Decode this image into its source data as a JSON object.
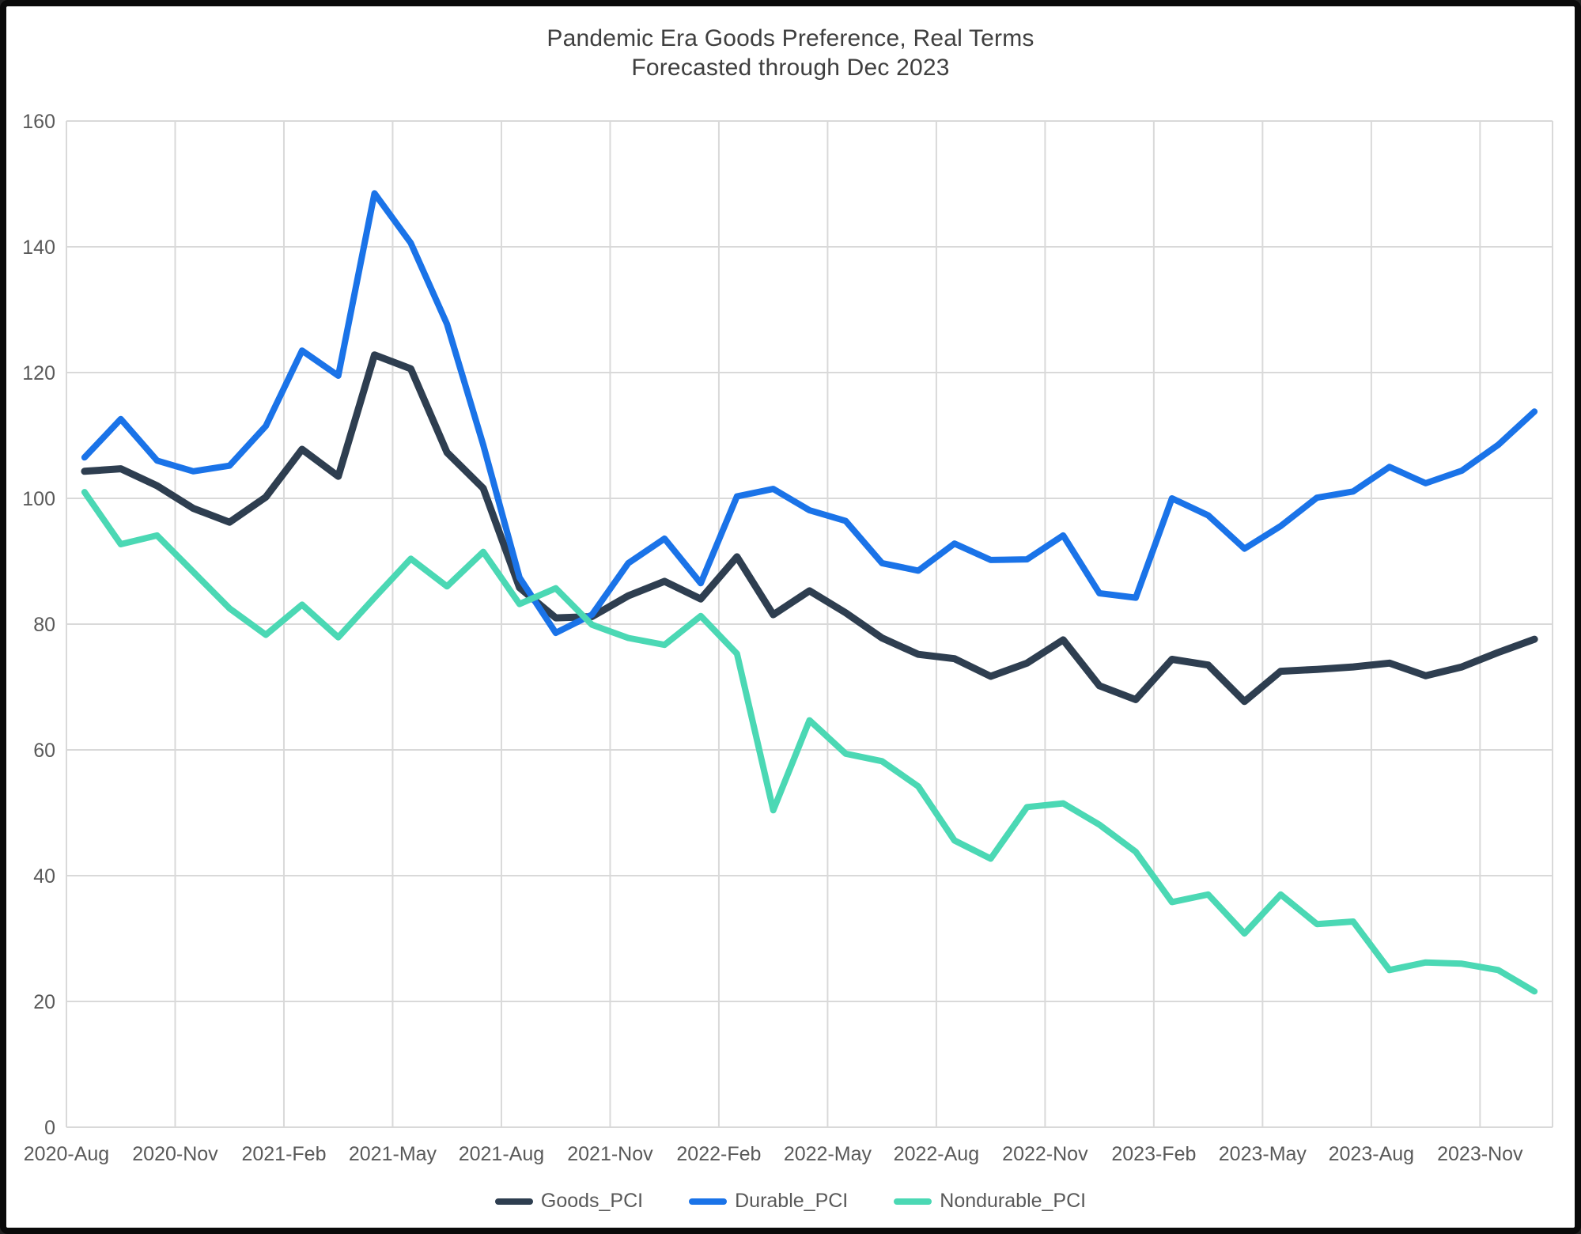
{
  "figure": {
    "title_line1": "Pandemic Era Goods Preference, Real Terms",
    "title_line2": "Forecasted through Dec 2023"
  },
  "chart_data": {
    "type": "line",
    "title": "Pandemic Era Goods Preference, Real Terms",
    "subtitle": "Forecasted through Dec 2023",
    "xlabel": "",
    "ylabel": "",
    "ylim": [
      0,
      160
    ],
    "y_ticks": [
      0,
      20,
      40,
      60,
      80,
      100,
      120,
      140,
      160
    ],
    "grid": true,
    "legend_position": "bottom",
    "x": [
      "2020-Aug",
      "2020-Sep",
      "2020-Oct",
      "2020-Nov",
      "2020-Dec",
      "2021-Jan",
      "2021-Feb",
      "2021-Mar",
      "2021-Apr",
      "2021-May",
      "2021-Jun",
      "2021-Jul",
      "2021-Aug",
      "2021-Sep",
      "2021-Oct",
      "2021-Nov",
      "2021-Dec",
      "2022-Jan",
      "2022-Feb",
      "2022-Mar",
      "2022-Apr",
      "2022-May",
      "2022-Jun",
      "2022-Jul",
      "2022-Aug",
      "2022-Sep",
      "2022-Oct",
      "2022-Nov",
      "2022-Dec",
      "2023-Jan",
      "2023-Feb",
      "2023-Mar",
      "2023-Apr",
      "2023-May",
      "2023-Jun",
      "2023-Jul",
      "2023-Aug",
      "2023-Sep",
      "2023-Oct",
      "2023-Nov",
      "2023-Dec"
    ],
    "x_tick_labels": [
      "2020-Aug",
      "2020-Nov",
      "2021-Feb",
      "2021-May",
      "2021-Aug",
      "2021-Nov",
      "2022-Feb",
      "2022-May",
      "2022-Aug",
      "2022-Nov",
      "2023-Feb",
      "2023-May",
      "2023-Aug",
      "2023-Nov"
    ],
    "x_tick_every": 3,
    "series": [
      {
        "name": "Goods_PCI",
        "color": "#2e3e50",
        "stroke_width": 9,
        "values": [
          104.3,
          104.7,
          102.0,
          98.4,
          96.2,
          100.2,
          107.8,
          103.5,
          122.8,
          120.6,
          107.3,
          101.6,
          85.8,
          81.0,
          81.2,
          84.5,
          86.8,
          84.0,
          90.7,
          81.5,
          85.3,
          81.8,
          77.8,
          75.2,
          74.5,
          71.7,
          73.8,
          77.5,
          70.2,
          68.0,
          74.4,
          73.5,
          67.7,
          72.5,
          72.8,
          73.2,
          73.8,
          71.8,
          73.2,
          75.5,
          77.6
        ]
      },
      {
        "name": "Durable_PCI",
        "color": "#1a73e8",
        "stroke_width": 8,
        "values": [
          106.5,
          112.6,
          106.0,
          104.3,
          105.2,
          111.5,
          123.5,
          119.5,
          148.5,
          140.6,
          127.7,
          108.5,
          87.4,
          78.6,
          81.5,
          89.7,
          93.6,
          86.5,
          100.3,
          101.5,
          98.1,
          96.4,
          89.7,
          88.5,
          92.8,
          90.2,
          90.3,
          94.1,
          84.9,
          84.2,
          100.0,
          97.3,
          92.0,
          95.6,
          100.1,
          101.1,
          105.0,
          102.4,
          104.4,
          108.5,
          113.8
        ]
      },
      {
        "name": "Nondurable_PCI",
        "color": "#4bd8b4",
        "stroke_width": 8,
        "values": [
          101.0,
          92.7,
          94.1,
          88.3,
          82.5,
          78.3,
          83.1,
          77.9,
          84.2,
          90.4,
          86.0,
          91.5,
          83.2,
          85.7,
          79.9,
          77.8,
          76.7,
          81.3,
          75.3,
          50.4,
          64.7,
          59.4,
          58.2,
          54.2,
          45.6,
          42.7,
          50.9,
          51.5,
          48.1,
          43.8,
          35.8,
          37.0,
          30.8,
          37.0,
          32.3,
          32.7,
          25.0,
          26.2,
          26.0,
          25.0,
          21.6
        ]
      }
    ]
  },
  "colors": {
    "background": "#ffffff",
    "frame": "#0a0a0a",
    "gridline": "#d9d9d9",
    "plot_border": "#d0d0d0",
    "axis_text": "#595959",
    "title_text": "#3f3f3f"
  }
}
